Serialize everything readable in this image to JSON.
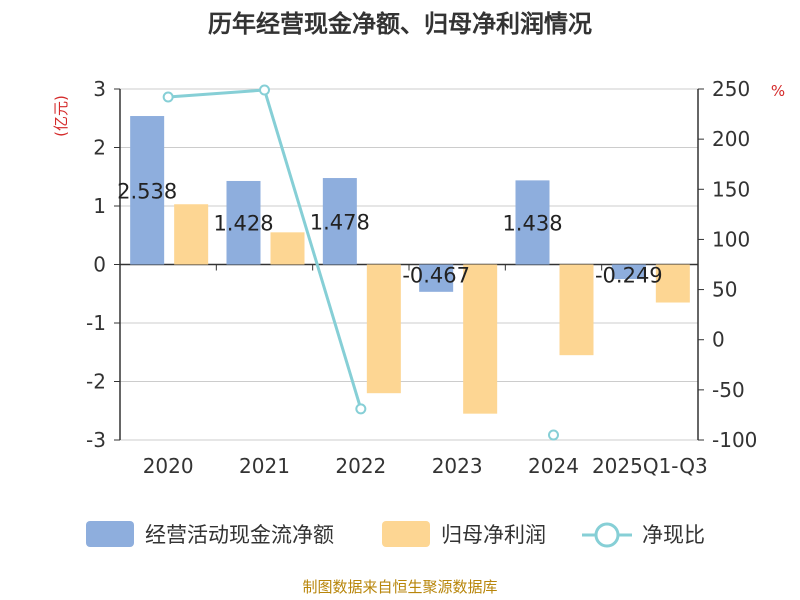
{
  "chart_data": {
    "type": "bar",
    "title": "历年经营现金净额、归母净利润情况",
    "categories": [
      "2020",
      "2021",
      "2022",
      "2023",
      "2024",
      "2025Q1-Q3"
    ],
    "left_axis": {
      "unit": "(亿元)",
      "ylim": [
        -3,
        3
      ],
      "ticks": [
        3,
        2,
        1,
        0,
        -1,
        -2,
        -3
      ]
    },
    "right_axis": {
      "unit": "%",
      "ylim": [
        -100,
        250
      ],
      "ticks": [
        250,
        200,
        150,
        100,
        50,
        0,
        -50,
        -100
      ]
    },
    "series": [
      {
        "name": "经营活动现金流净额",
        "type": "bar",
        "axis": "left",
        "color": "#8eaedd",
        "values": [
          2.538,
          1.428,
          1.478,
          -0.467,
          1.438,
          -0.249
        ],
        "labels": [
          "2.538",
          "1.428",
          "1.478",
          "-0.467",
          "1.438",
          "-0.249"
        ]
      },
      {
        "name": "归母净利润",
        "type": "bar",
        "axis": "left",
        "color": "#fdd693",
        "values": [
          1.03,
          0.55,
          -2.2,
          -2.55,
          -1.55,
          -0.65
        ]
      },
      {
        "name": "净现比",
        "type": "line",
        "axis": "right",
        "color": "#86cfd6",
        "values": [
          242,
          249,
          -69,
          null,
          -95,
          null
        ]
      }
    ],
    "grid": true,
    "legend_position": "bottom"
  },
  "source": "制图数据来自恒生聚源数据库"
}
